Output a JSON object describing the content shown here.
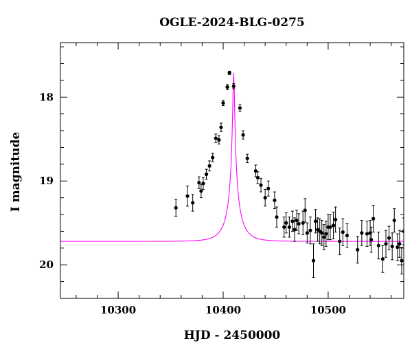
{
  "chart_data": {
    "type": "scatter",
    "title": "OGLE-2024-BLG-0275",
    "xlabel": "HJD - 2450000",
    "ylabel": "I magnitude",
    "xlim": [
      10245,
      10572
    ],
    "ylim": [
      20.4,
      17.35
    ],
    "y_inverted": true,
    "x_ticks": [
      10300,
      10400,
      10500
    ],
    "y_ticks": [
      18,
      19,
      20
    ],
    "model_color": "#ff00ff",
    "point_color": "#000000",
    "model": {
      "t0": 10410,
      "baseline_mag": 19.72,
      "peak_mag": 17.71,
      "tE": 14,
      "fs": 0.3
    },
    "series": [
      {
        "x": [
          10355,
          10366,
          10371,
          10377,
          10379,
          10381,
          10384,
          10387,
          10390,
          10393,
          10396,
          10398,
          10400,
          10404,
          10406,
          10410,
          10416,
          10419,
          10423,
          10431,
          10433,
          10436,
          10440,
          10443,
          10449,
          10451,
          10458,
          10460,
          10463,
          10466,
          10468,
          10470,
          10472,
          10476,
          10478,
          10480,
          10483,
          10486,
          10488,
          10490,
          10492,
          10494,
          10496,
          10498,
          10500,
          10502,
          10505,
          10507,
          10511,
          10514,
          10518,
          10528,
          10532,
          10537,
          10540,
          10541,
          10543,
          10548,
          10552,
          10555,
          10558,
          10561,
          10563,
          10566,
          10568,
          10570,
          10572
        ],
        "y": [
          19.32,
          19.18,
          19.26,
          19.02,
          19.12,
          19.03,
          18.92,
          18.82,
          18.72,
          18.49,
          18.51,
          18.36,
          18.07,
          17.88,
          17.71,
          17.87,
          18.13,
          18.45,
          18.73,
          18.88,
          18.96,
          19.05,
          19.2,
          19.09,
          19.23,
          19.43,
          19.55,
          19.5,
          19.55,
          19.48,
          19.58,
          19.47,
          19.51,
          19.5,
          19.35,
          19.62,
          19.59,
          19.95,
          19.48,
          19.58,
          19.6,
          19.62,
          19.67,
          19.63,
          19.55,
          19.55,
          19.53,
          19.46,
          19.72,
          19.61,
          19.65,
          19.82,
          19.62,
          19.63,
          19.62,
          19.7,
          19.45,
          19.77,
          19.93,
          19.75,
          19.68,
          19.78,
          19.47,
          19.79,
          19.75,
          19.95,
          19.6
        ],
        "yerr": [
          0.1,
          0.12,
          0.1,
          0.07,
          0.08,
          0.07,
          0.06,
          0.06,
          0.05,
          0.05,
          0.05,
          0.05,
          0.03,
          0.03,
          0.02,
          0.03,
          0.04,
          0.05,
          0.05,
          0.07,
          0.07,
          0.08,
          0.1,
          0.09,
          0.1,
          0.12,
          0.12,
          0.12,
          0.12,
          0.12,
          0.14,
          0.12,
          0.12,
          0.14,
          0.14,
          0.12,
          0.16,
          0.2,
          0.14,
          0.14,
          0.15,
          0.15,
          0.15,
          0.15,
          0.15,
          0.15,
          0.16,
          0.15,
          0.16,
          0.16,
          0.14,
          0.16,
          0.15,
          0.15,
          0.15,
          0.15,
          0.16,
          0.16,
          0.16,
          0.16,
          0.14,
          0.16,
          0.14,
          0.16,
          0.16,
          0.16,
          0.16
        ]
      }
    ]
  }
}
